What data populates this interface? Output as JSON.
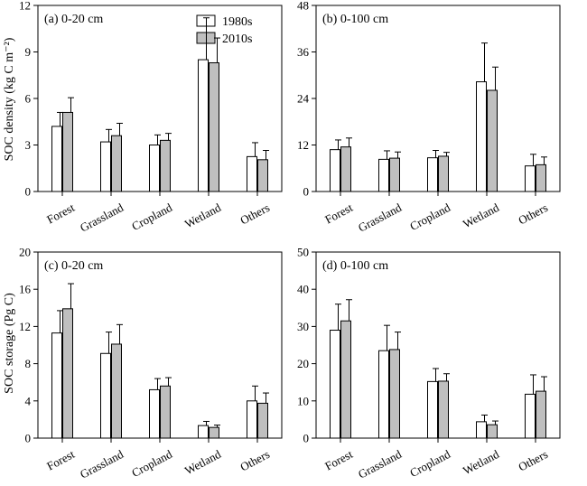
{
  "legend": [
    "1980s",
    "2010s"
  ],
  "colors": {
    "series_1980s": "#ffffff",
    "series_2010s": "#bfbfbf",
    "axis": "#000000"
  },
  "ylabels": {
    "density": "SOC density (kg C m⁻²)",
    "storage": "SOC storage (Pg C)"
  },
  "chart_data": [
    {
      "type": "bar",
      "title": "(a) 0-20 cm",
      "categories": [
        "Forest",
        "Grassland",
        "Cropland",
        "Wetland",
        "Others"
      ],
      "ylim": [
        0,
        12
      ],
      "yticks": [
        0,
        3,
        6,
        9,
        12
      ],
      "series": [
        {
          "name": "1980s",
          "values": [
            4.2,
            3.2,
            3.0,
            8.5,
            2.25
          ],
          "errors": [
            0.9,
            0.8,
            0.65,
            2.7,
            0.9
          ]
        },
        {
          "name": "2010s",
          "values": [
            5.1,
            3.6,
            3.3,
            8.3,
            2.05
          ],
          "errors": [
            0.95,
            0.8,
            0.45,
            1.6,
            0.6
          ]
        }
      ]
    },
    {
      "type": "bar",
      "title": "(b) 0-100 cm",
      "categories": [
        "Forest",
        "Grassland",
        "Cropland",
        "Wetland",
        "Others"
      ],
      "ylim": [
        0,
        48
      ],
      "yticks": [
        0,
        12,
        24,
        36,
        48
      ],
      "series": [
        {
          "name": "1980s",
          "values": [
            10.8,
            8.3,
            8.7,
            28.3,
            6.6
          ],
          "errors": [
            2.5,
            2.2,
            1.9,
            10.0,
            3.0
          ]
        },
        {
          "name": "2010s",
          "values": [
            11.5,
            8.6,
            9.1,
            26.1,
            6.9
          ],
          "errors": [
            2.3,
            1.6,
            1.0,
            6.0,
            2.0
          ]
        }
      ]
    },
    {
      "type": "bar",
      "title": "(c) 0-20 cm",
      "categories": [
        "Forest",
        "Grassland",
        "Cropland",
        "Wetland",
        "Others"
      ],
      "ylim": [
        0,
        20
      ],
      "yticks": [
        0,
        4,
        8,
        12,
        16,
        20
      ],
      "series": [
        {
          "name": "1980s",
          "values": [
            11.3,
            9.1,
            5.2,
            1.35,
            4.0
          ],
          "errors": [
            2.4,
            2.3,
            1.2,
            0.45,
            1.6
          ]
        },
        {
          "name": "2010s",
          "values": [
            13.9,
            10.1,
            5.6,
            1.15,
            3.75
          ],
          "errors": [
            2.7,
            2.1,
            0.9,
            0.25,
            1.1
          ]
        }
      ]
    },
    {
      "type": "bar",
      "title": "(d) 0-100 cm",
      "categories": [
        "Forest",
        "Grassland",
        "Cropland",
        "Wetland",
        "Others"
      ],
      "ylim": [
        0,
        50
      ],
      "yticks": [
        0,
        10,
        20,
        30,
        40,
        50
      ],
      "series": [
        {
          "name": "1980s",
          "values": [
            29.0,
            23.5,
            15.2,
            4.4,
            11.8
          ],
          "errors": [
            7.0,
            6.8,
            3.5,
            1.8,
            5.2
          ]
        },
        {
          "name": "2010s",
          "values": [
            31.5,
            23.8,
            15.3,
            3.6,
            12.6
          ],
          "errors": [
            5.7,
            4.7,
            2.0,
            1.0,
            3.9
          ]
        }
      ]
    }
  ]
}
